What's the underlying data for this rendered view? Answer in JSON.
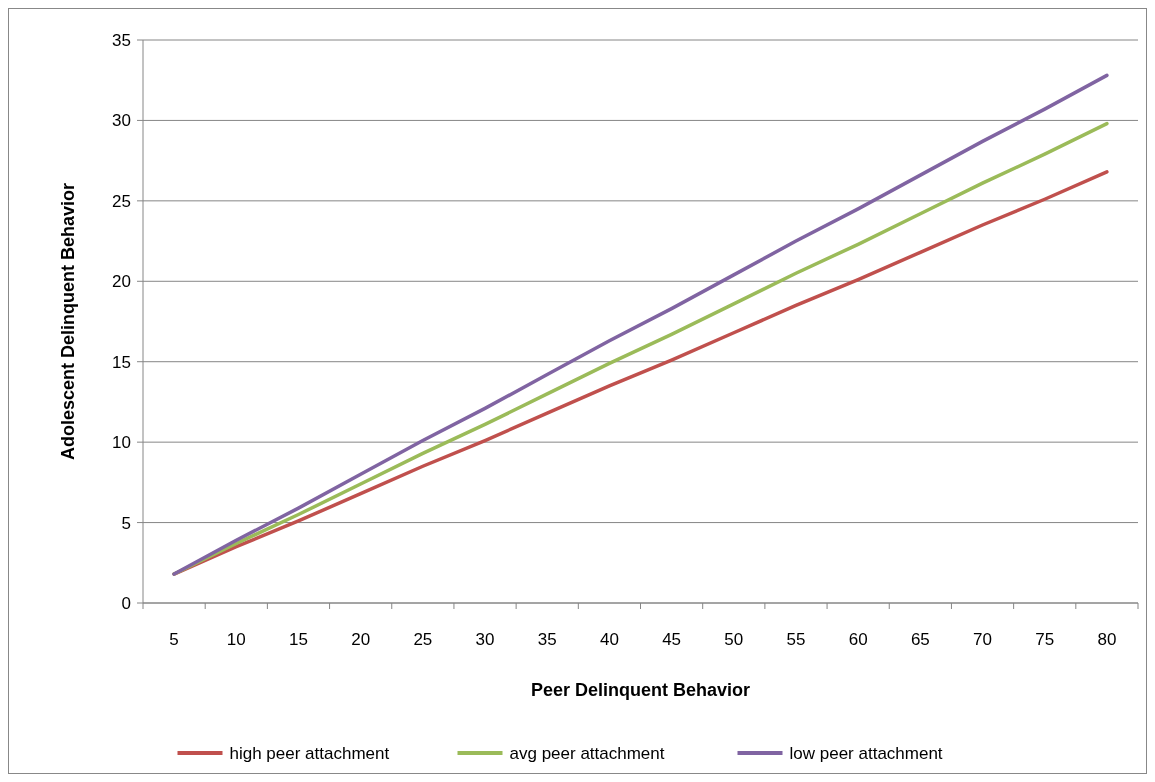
{
  "chart_data": {
    "type": "line",
    "xlabel": "Peer Delinquent Behavior",
    "ylabel": "Adolescent Delinquent Behavior",
    "categories": [
      "5",
      "10",
      "15",
      "20",
      "25",
      "30",
      "35",
      "40",
      "45",
      "50",
      "55",
      "60",
      "65",
      "70",
      "75",
      "80"
    ],
    "series": [
      {
        "name": "high peer attachment",
        "color": "#c0504d",
        "values": [
          1.8,
          3.5,
          5.1,
          6.8,
          8.5,
          10.1,
          11.8,
          13.5,
          15.1,
          16.8,
          18.5,
          20.1,
          21.8,
          23.5,
          25.1,
          26.8
        ]
      },
      {
        "name": "avg peer attachment",
        "color": "#9bbb59",
        "values": [
          1.8,
          3.7,
          5.5,
          7.4,
          9.3,
          11.1,
          13.0,
          14.9,
          16.7,
          18.6,
          20.5,
          22.3,
          24.2,
          26.1,
          27.9,
          29.8
        ]
      },
      {
        "name": "low peer attachment",
        "color": "#8064a2",
        "values": [
          1.8,
          3.9,
          5.9,
          8.0,
          10.1,
          12.1,
          14.2,
          16.3,
          18.3,
          20.4,
          22.5,
          24.5,
          26.6,
          28.7,
          30.7,
          32.8
        ]
      }
    ],
    "ylim": [
      0,
      35
    ],
    "yticks": [
      0,
      5,
      10,
      15,
      20,
      25,
      30,
      35
    ],
    "grid": "y",
    "legend": "bottom",
    "marker": "none",
    "line_style": "solid"
  }
}
